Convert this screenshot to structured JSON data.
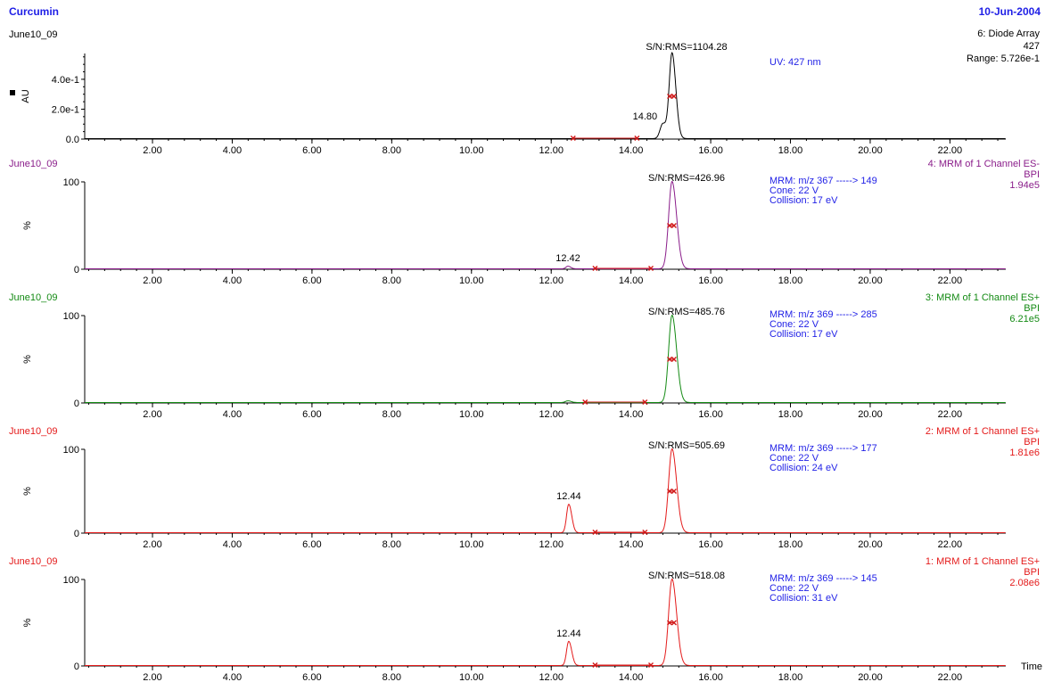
{
  "header": {
    "title": "Curcumin",
    "date": "10-Jun-2004"
  },
  "x_axis_label": "Time",
  "colors": {
    "blue": "#1f1fe6",
    "purple": "#8a1d8a",
    "green": "#138a13",
    "red": "#e41a1a",
    "black": "#000000",
    "marker": "#d01818"
  },
  "chart_data": [
    {
      "type": "line",
      "sample": "June10_09",
      "trace": "6: Diode Array",
      "trace_sub": "427",
      "scale": "Range: 5.726e-1",
      "color": "#000000",
      "y_axis_label": "AU",
      "yticks": [
        {
          "v": 0,
          "label": "0.0"
        },
        {
          "v": 0.2,
          "label": "2.0e-1"
        },
        {
          "v": 0.4,
          "label": "4.0e-1"
        }
      ],
      "ymax": 0.5726,
      "method": [
        "UV: 427 nm"
      ],
      "sn": "S/N:RMS=1104.28",
      "xlim": [
        0.3,
        23.4
      ],
      "xticks": [
        "2.00",
        "4.00",
        "6.00",
        "8.00",
        "10.00",
        "12.00",
        "14.00",
        "16.00",
        "18.00",
        "20.00",
        "22.00"
      ],
      "peaks": [
        {
          "rt": 14.8,
          "height": 0.1,
          "width": 0.07,
          "label": "14.80"
        },
        {
          "rt": 15.03,
          "height": 0.57,
          "width": 0.07
        }
      ],
      "baseline": 0.003,
      "integration_markers": [
        [
          12.55,
          14.15
        ]
      ],
      "halfheight_markers": [
        [
          14.97,
          15.08
        ]
      ]
    },
    {
      "type": "line",
      "sample": "June10_09",
      "trace": "4: MRM of 1 Channel ES-",
      "trace_sub": "BPI",
      "scale": "1.94e5",
      "color": "#8a1d8a",
      "y_axis_label": "%",
      "yticks": [
        {
          "v": 0,
          "label": "0"
        },
        {
          "v": 100,
          "label": "100"
        }
      ],
      "ymax": 100,
      "method": [
        "MRM: m/z 367 -----> 149",
        "Cone: 22 V",
        "Collision: 17 eV"
      ],
      "sn": "S/N:RMS=426.96",
      "xlim": [
        0.3,
        23.4
      ],
      "xticks": [
        "2.00",
        "4.00",
        "6.00",
        "8.00",
        "10.00",
        "12.00",
        "14.00",
        "16.00",
        "18.00",
        "20.00",
        "22.00"
      ],
      "peaks": [
        {
          "rt": 12.42,
          "height": 3,
          "width": 0.05,
          "label": "12.42"
        },
        {
          "rt": 15.03,
          "height": 100,
          "width": 0.085
        }
      ],
      "baseline": 0.5,
      "integration_markers": [
        [
          13.1,
          14.5
        ]
      ],
      "halfheight_markers": [
        [
          14.97,
          15.08
        ]
      ]
    },
    {
      "type": "line",
      "sample": "June10_09",
      "trace": "3: MRM of 1 Channel ES+",
      "trace_sub": "BPI",
      "scale": "6.21e5",
      "color": "#138a13",
      "y_axis_label": "%",
      "yticks": [
        {
          "v": 0,
          "label": "0"
        },
        {
          "v": 100,
          "label": "100"
        }
      ],
      "ymax": 100,
      "method": [
        "MRM: m/z 369 -----> 285",
        "Cone: 22 V",
        "Collision: 17 eV"
      ],
      "sn": "S/N:RMS=485.76",
      "xlim": [
        0.3,
        23.4
      ],
      "xticks": [
        "2.00",
        "4.00",
        "6.00",
        "8.00",
        "10.00",
        "12.00",
        "14.00",
        "16.00",
        "18.00",
        "20.00",
        "22.00"
      ],
      "peaks": [
        {
          "rt": 12.42,
          "height": 2,
          "width": 0.06
        },
        {
          "rt": 15.03,
          "height": 100,
          "width": 0.085
        }
      ],
      "baseline": 0.5,
      "integration_markers": [
        [
          12.85,
          14.35
        ]
      ],
      "halfheight_markers": [
        [
          14.97,
          15.08
        ]
      ]
    },
    {
      "type": "line",
      "sample": "June10_09",
      "trace": "2: MRM of 1 Channel ES+",
      "trace_sub": "BPI",
      "scale": "1.81e6",
      "color": "#e41a1a",
      "y_axis_label": "%",
      "yticks": [
        {
          "v": 0,
          "label": "0"
        },
        {
          "v": 100,
          "label": "100"
        }
      ],
      "ymax": 100,
      "method": [
        "MRM: m/z 369 -----> 177",
        "Cone: 22 V",
        "Collision: 24 eV"
      ],
      "sn": "S/N:RMS=505.69",
      "xlim": [
        0.3,
        23.4
      ],
      "xticks": [
        "2.00",
        "4.00",
        "6.00",
        "8.00",
        "10.00",
        "12.00",
        "14.00",
        "16.00",
        "18.00",
        "20.00",
        "22.00"
      ],
      "peaks": [
        {
          "rt": 12.44,
          "height": 34,
          "width": 0.055,
          "label": "12.44"
        },
        {
          "rt": 15.03,
          "height": 100,
          "width": 0.085
        }
      ],
      "baseline": 0.5,
      "integration_markers": [
        [
          13.1,
          14.35
        ]
      ],
      "halfheight_markers": [
        [
          14.97,
          15.08
        ]
      ]
    },
    {
      "type": "line",
      "sample": "June10_09",
      "trace": "1: MRM of 1 Channel ES+",
      "trace_sub": "BPI",
      "scale": "2.08e6",
      "color": "#e41a1a",
      "y_axis_label": "%",
      "yticks": [
        {
          "v": 0,
          "label": "0"
        },
        {
          "v": 100,
          "label": "100"
        }
      ],
      "ymax": 100,
      "method": [
        "MRM: m/z 369 -----> 145",
        "Cone: 22 V",
        "Collision: 31 eV"
      ],
      "sn": "S/N:RMS=518.08",
      "xlim": [
        0.3,
        23.4
      ],
      "xticks": [
        "2.00",
        "4.00",
        "6.00",
        "8.00",
        "10.00",
        "12.00",
        "14.00",
        "16.00",
        "18.00",
        "20.00",
        "22.00"
      ],
      "peaks": [
        {
          "rt": 12.44,
          "height": 28,
          "width": 0.055,
          "label": "12.44"
        },
        {
          "rt": 15.03,
          "height": 100,
          "width": 0.085
        }
      ],
      "baseline": 0.5,
      "integration_markers": [
        [
          13.1,
          14.5
        ]
      ],
      "halfheight_markers": [
        [
          14.97,
          15.08
        ]
      ]
    }
  ]
}
